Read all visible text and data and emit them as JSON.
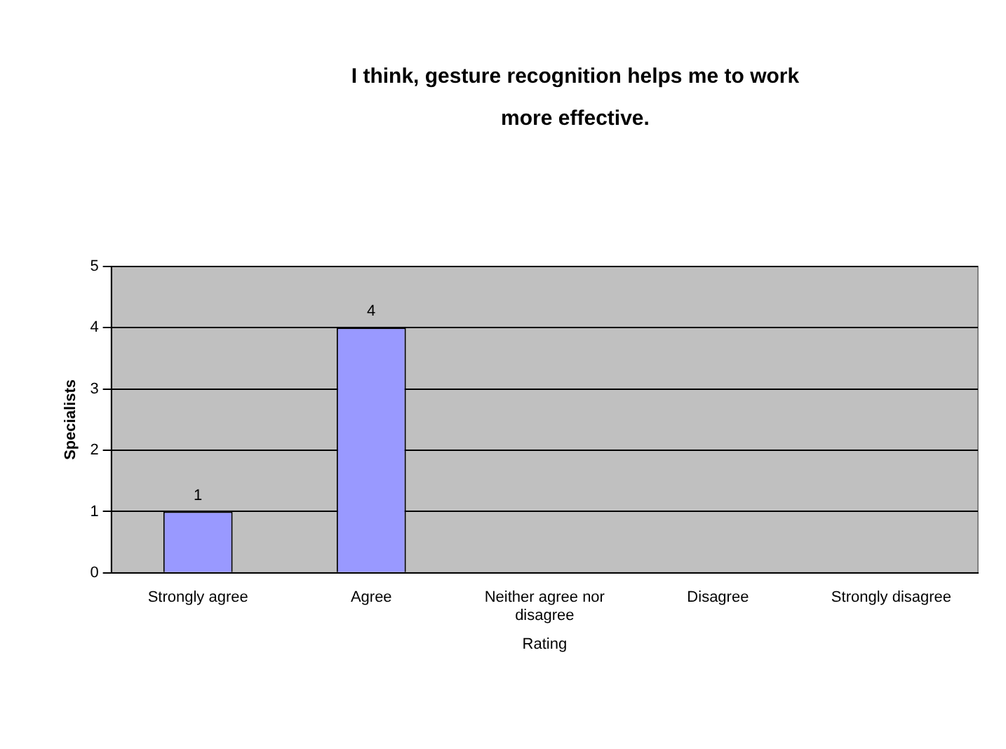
{
  "chart_data": {
    "type": "bar",
    "title": "I think, gesture recognition helps me to work more effective.",
    "categories": [
      "Strongly agree",
      "Agree",
      "Neither agree nor disagree",
      "Disagree",
      "Strongly disagree"
    ],
    "values": [
      1,
      4,
      null,
      null,
      null
    ],
    "color": "#9999ff",
    "xlabel": "Rating",
    "ylabel": "Specialists",
    "ylim": [
      0,
      5
    ],
    "yticks": [
      0,
      1,
      2,
      3,
      4,
      5
    ],
    "grid": "y",
    "data_labels": true,
    "legend": false
  }
}
